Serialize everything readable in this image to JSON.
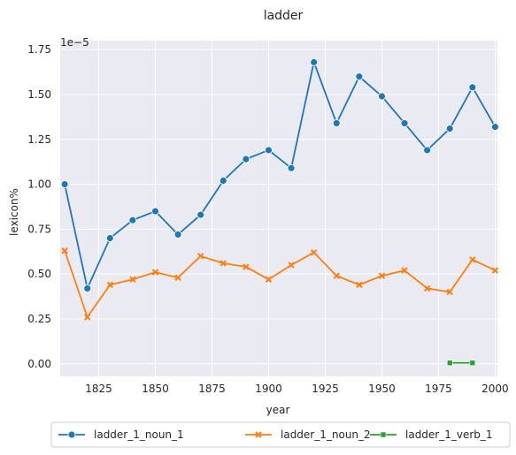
{
  "chart_data": {
    "type": "line",
    "title": "ladder",
    "xlabel": "year",
    "ylabel": "lexicon%",
    "y_offset_label": "1e−5",
    "xlim": [
      1808,
      2001
    ],
    "ylim": [
      -0.07,
      1.8
    ],
    "x_ticks": [
      1825,
      1850,
      1875,
      1900,
      1925,
      1950,
      1975,
      2000
    ],
    "x_tick_labels": [
      "1825",
      "1850",
      "1875",
      "1900",
      "1925",
      "1950",
      "1975",
      "2000"
    ],
    "y_ticks": [
      0.0,
      0.25,
      0.5,
      0.75,
      1.0,
      1.25,
      1.5,
      1.75
    ],
    "y_tick_labels": [
      "0.00",
      "0.25",
      "0.50",
      "0.75",
      "1.00",
      "1.25",
      "1.50",
      "1.75"
    ],
    "grid": true,
    "legend_position": "bottom",
    "colors": {
      "background": "#eaeaf2",
      "grid": "#ffffff"
    },
    "series": [
      {
        "name": "ladder_1_noun_1",
        "color": "#1f77b4",
        "marker": "circle",
        "x": [
          1810,
          1820,
          1830,
          1840,
          1850,
          1860,
          1870,
          1880,
          1890,
          1900,
          1910,
          1920,
          1930,
          1940,
          1950,
          1960,
          1970,
          1980,
          1990,
          2000
        ],
        "y": [
          1.0,
          0.42,
          0.7,
          0.8,
          0.85,
          0.72,
          0.83,
          1.02,
          1.14,
          1.19,
          1.09,
          1.68,
          1.34,
          1.6,
          1.49,
          1.34,
          1.19,
          1.31,
          1.54,
          1.32
        ]
      },
      {
        "name": "ladder_1_noun_2",
        "color": "#ff7f0e",
        "marker": "x",
        "x": [
          1810,
          1820,
          1830,
          1840,
          1850,
          1860,
          1870,
          1880,
          1890,
          1900,
          1910,
          1920,
          1930,
          1940,
          1950,
          1960,
          1970,
          1980,
          1990,
          2000
        ],
        "y": [
          0.63,
          0.26,
          0.44,
          0.47,
          0.51,
          0.48,
          0.6,
          0.56,
          0.54,
          0.47,
          0.55,
          0.62,
          0.49,
          0.44,
          0.49,
          0.52,
          0.42,
          0.4,
          0.58,
          0.52
        ]
      },
      {
        "name": "ladder_1_verb_1",
        "color": "#2ca02c",
        "marker": "square",
        "x": [
          1980,
          1990
        ],
        "y": [
          0.005,
          0.005
        ]
      }
    ]
  }
}
